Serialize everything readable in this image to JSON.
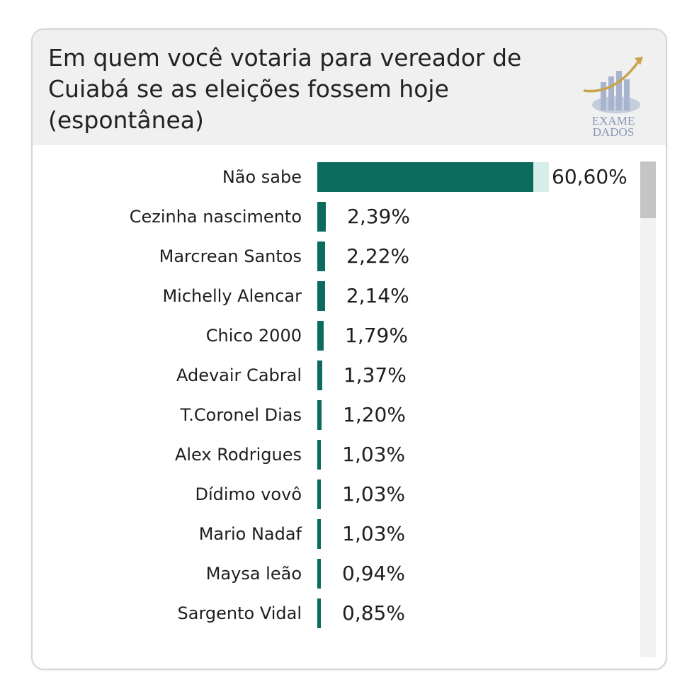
{
  "header": {
    "title": "Em quem você votaria para vereador de Cuiabá se as eleições fossem hoje (espontânea)",
    "logo_text_1": "EXAME",
    "logo_text_2": "DADOS"
  },
  "colors": {
    "bar": "#0b6b5c",
    "bar_track": "#d8eeea",
    "logo_gold": "#c9a24a",
    "logo_blue": "#a8b4cf"
  },
  "chart_data": {
    "type": "bar",
    "orientation": "horizontal",
    "title": "Em quem você votaria para vereador de Cuiabá se as eleições fossem hoje (espontânea)",
    "categories": [
      "Não sabe",
      "Cezinha nascimento",
      "Marcrean Santos",
      "Michelly Alencar",
      "Chico 2000",
      "Adevair Cabral",
      "T.Coronel Dias",
      "Alex Rodrigues",
      "Dídimo vovô",
      "Mario Nadaf",
      "Maysa leão",
      "Sargento Vidal"
    ],
    "values": [
      60.6,
      2.39,
      2.22,
      2.14,
      1.79,
      1.37,
      1.2,
      1.03,
      1.03,
      1.03,
      0.94,
      0.85
    ],
    "value_labels": [
      "60,60%",
      "2,39%",
      "2,22%",
      "2,14%",
      "1,79%",
      "1,37%",
      "1,20%",
      "1,03%",
      "1,03%",
      "1,03%",
      "0,94%",
      "0,85%"
    ],
    "xlim": [
      0,
      60.6
    ],
    "xlabel": "",
    "ylabel": "",
    "grid": false
  }
}
